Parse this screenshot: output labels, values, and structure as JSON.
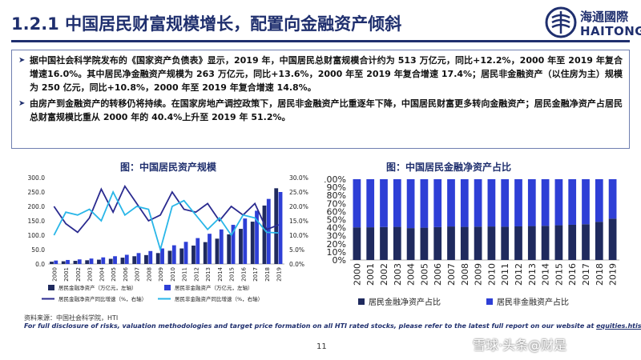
{
  "header": {
    "title": "1.2.1 中国居民财富规模增长，配置向金融资产倾斜",
    "logo_cn": "海通國際",
    "logo_en": "HAITONG"
  },
  "bullets": [
    "据中国社会科学院发布的《国家资产负债表》显示，2019 年，中国居民总财富规模合计约为 513 万亿元，同比+12.2%，2000 年至 2019 年复合增速16.0%。其中居民净金融资产规模为 263 万亿元，同比+13.6%，2000 年至 2019 年复合增速 17.4%；居民非金融资产（以住房为主）规模为 250 亿元，同比+10.8%，2000 年至 2019 年复合增速 14.8%。",
    "由房产到金融资产的转移仍将持续。在国家房地产调控政策下，居民非金融资产比重逐年下降，中国居民财富更多转向金融资产；居民金融净资产占居民总财富规模比重从 2000 年的 40.4%上升至 2019 年 51.2%。"
  ],
  "colors": {
    "navy": "#1f2f6e",
    "dark_bar": "#1f2a5e",
    "blue_bar": "#2e3fd6",
    "line_dark": "#2a2a8f",
    "line_light": "#29b6e8"
  },
  "chart_data": [
    {
      "type": "bar",
      "title": "图：中国居民资产规模",
      "categories": [
        "2000",
        "2001",
        "2002",
        "2003",
        "2004",
        "2005",
        "2006",
        "2007",
        "2008",
        "2009",
        "2010",
        "2011",
        "2012",
        "2013",
        "2014",
        "2015",
        "2016",
        "2017",
        "2018",
        "2019"
      ],
      "left_axis": {
        "ticks": [
          "0.0",
          "50.0",
          "100.0",
          "150.0",
          "200.0",
          "250.0",
          "300.0"
        ],
        "ylim": [
          0,
          300
        ]
      },
      "right_axis": {
        "ticks": [
          "0.0%",
          "5.0%",
          "10.0%",
          "15.0%",
          "20.0%",
          "25.0%",
          "30.0%"
        ],
        "ylim": [
          0,
          30
        ]
      },
      "series": [
        {
          "name": "居民金融净资产（万亿元，左轴）",
          "kind": "bar",
          "axis": "left",
          "values": [
            8,
            9.5,
            11,
            13,
            15,
            18,
            22,
            27,
            31,
            38,
            46,
            54,
            64,
            76,
            88,
            103,
            122,
            147,
            203,
            263
          ]
        },
        {
          "name": "居民非金融资产（万亿元，左轴）",
          "kind": "bar",
          "axis": "left",
          "values": [
            12,
            14,
            16,
            19,
            23,
            27,
            32,
            38,
            45,
            54,
            65,
            77,
            90,
            105,
            120,
            136,
            158,
            185,
            226,
            250
          ]
        },
        {
          "name": "居民金融净资产同比增速（%，右轴）",
          "kind": "line",
          "axis": "right",
          "values": [
            20,
            14,
            11,
            16,
            26,
            18,
            27,
            21,
            15,
            17,
            25,
            19,
            18,
            21,
            15,
            20,
            17,
            21,
            12,
            13.6
          ]
        },
        {
          "name": "居民非金融资产同比增速（%，右轴）",
          "kind": "line",
          "axis": "right",
          "values": [
            10,
            18,
            17,
            19,
            15,
            25,
            17,
            20,
            19,
            5,
            20,
            22,
            17,
            12,
            16,
            10,
            17,
            16,
            11,
            10.8
          ]
        }
      ],
      "legend_position": "bottom",
      "grid": false
    },
    {
      "type": "bar",
      "stacked": true,
      "title": "图：中国居民金融净资产占比",
      "categories": [
        "2000",
        "2001",
        "2002",
        "2003",
        "2004",
        "2005",
        "2006",
        "2007",
        "2008",
        "2009",
        "2010",
        "2011",
        "2012",
        "2013",
        "2014",
        "2015",
        "2016",
        "2017",
        "2018",
        "2019"
      ],
      "y_ticks": [
        "0%",
        "10%",
        "20%",
        "30%",
        "40%",
        "50%",
        "60%",
        "70%",
        "80%",
        "90%",
        "100%"
      ],
      "ylim": [
        0,
        100
      ],
      "series": [
        {
          "name": "居民金融净资产占比",
          "values": [
            40.4,
            40.5,
            40.8,
            41,
            39.5,
            40,
            40.7,
            41.5,
            41,
            41.3,
            41.5,
            41.2,
            41.6,
            42,
            42.3,
            43,
            43.6,
            44.3,
            47.3,
            51.2
          ]
        },
        {
          "name": "居民非金融资产占比",
          "values": [
            59.6,
            59.5,
            59.2,
            59,
            60.5,
            60,
            59.3,
            58.5,
            59,
            58.7,
            58.5,
            58.8,
            58.4,
            58,
            57.7,
            57,
            56.4,
            55.7,
            52.7,
            48.8
          ]
        }
      ],
      "legend_position": "bottom",
      "grid": false
    }
  ],
  "footer": {
    "source": "资料来源：中国社会科学院，HTI",
    "disclaimer": "For full disclosure of risks, valuation methodologies and target price formation on all HTI rated stocks, please refer to the latest full report on our website at ",
    "disclaimer_link": "equities.htisec.com",
    "page": "11",
    "watermark": "雪球·头条@财是"
  }
}
